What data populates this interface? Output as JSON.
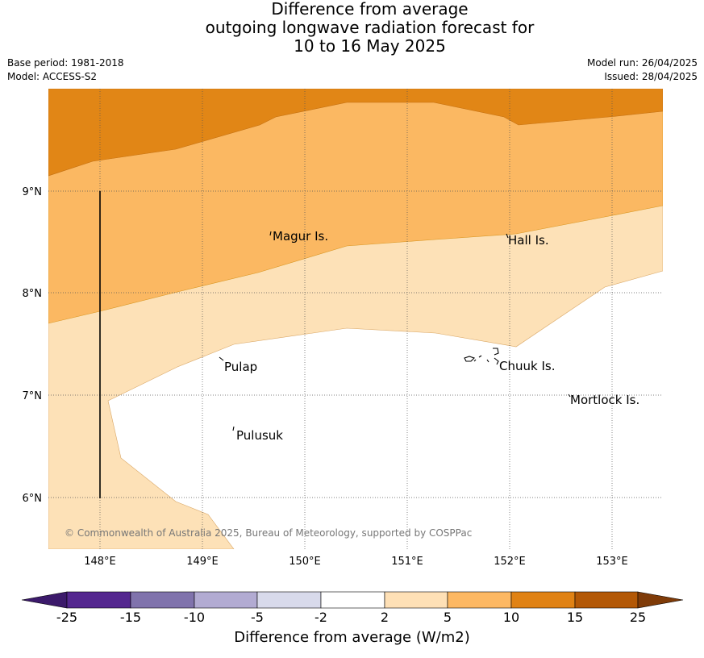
{
  "header": {
    "title_lines": [
      "Difference from average",
      "outgoing longwave radiation forecast for",
      "10 to 16 May 2025"
    ],
    "base_period": "Base period: 1981-2018",
    "model": "Model: ACCESS-S2",
    "model_run": "Model run: 26/04/2025",
    "issued": "Issued: 28/04/2025"
  },
  "map": {
    "lat_labels": [
      "9°N",
      "8°N",
      "7°N",
      "6°N"
    ],
    "lon_labels": [
      "148°E",
      "149°E",
      "150°E",
      "151°E",
      "152°E",
      "153°E"
    ],
    "places": [
      "Magur Is.",
      "Hall Is.",
      "Pulap",
      "Chuuk Is.",
      "Mortlock Is.",
      "Pulusuk"
    ],
    "copyright": "© Commonwealth of Australia 2025, Bureau of Meteorology, supported by COSPPac",
    "band_colors": {
      "b2_5": "#fde1b7",
      "b5_10": "#fbb862",
      "b10_15": "#e18616"
    }
  },
  "colorbar": {
    "ticks": [
      "-25",
      "-15",
      "-10",
      "-5",
      "-2",
      "2",
      "5",
      "10",
      "15",
      "25"
    ],
    "colors": [
      "#3c1a6b",
      "#54278f",
      "#8073ac",
      "#b2abd2",
      "#d8daeb",
      "#ffffff",
      "#fee0b6",
      "#fdb863",
      "#e08214",
      "#b35806",
      "#7f3b08"
    ],
    "label": "Difference from average (W/m2)"
  }
}
